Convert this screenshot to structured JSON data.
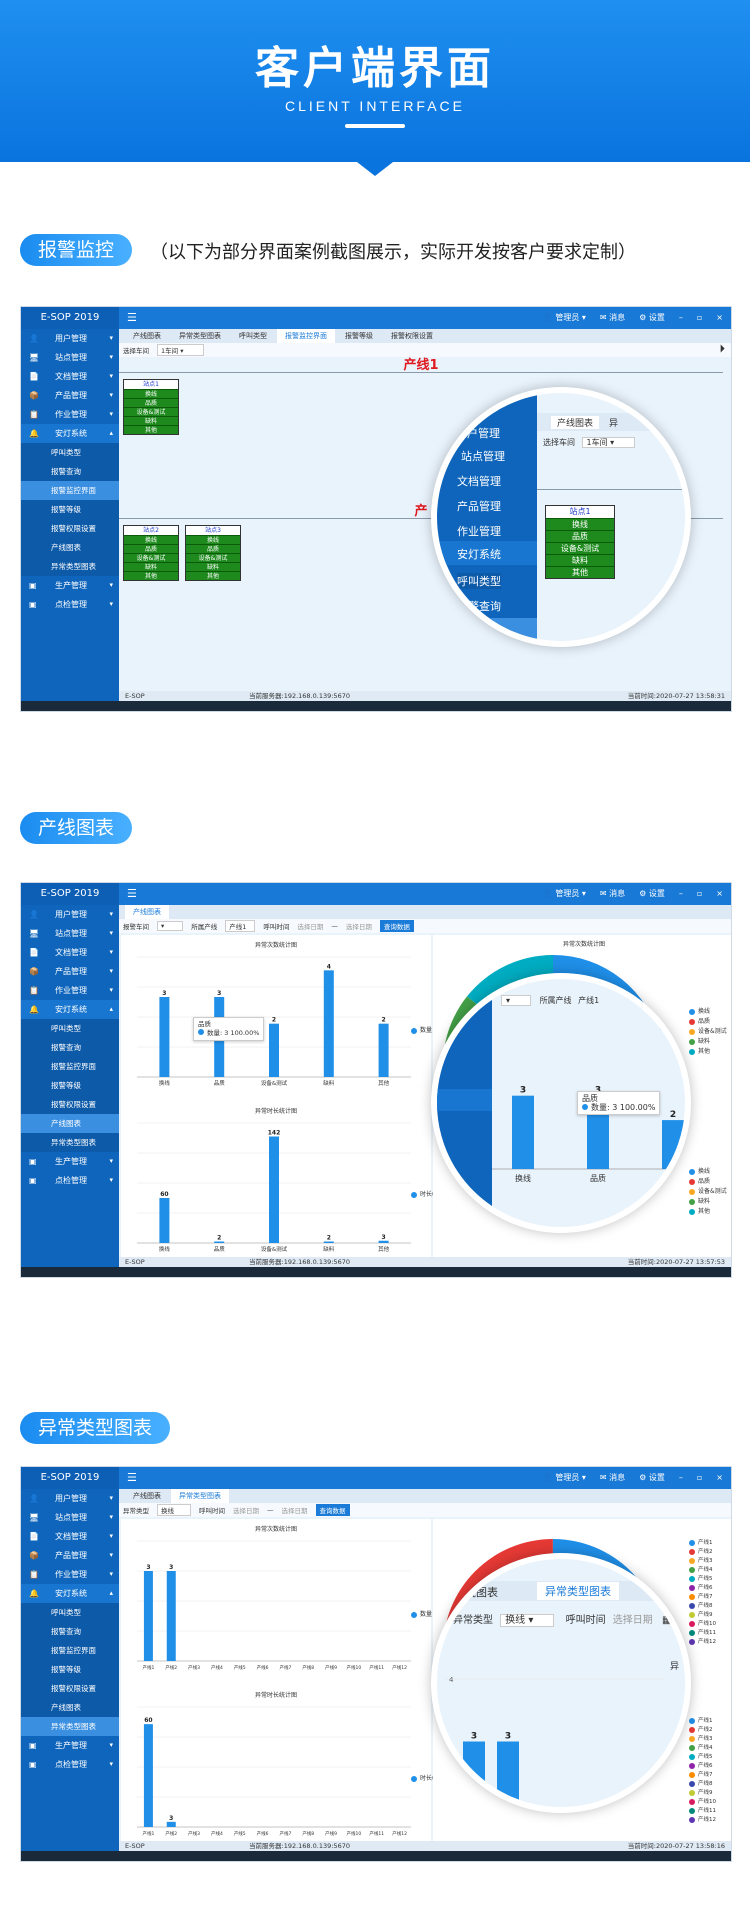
{
  "banner": {
    "title": "客户端界面",
    "subtitle": "CLIENT INTERFACE"
  },
  "sections": {
    "alarm": {
      "label": "报警监控",
      "note": "（以下为部分界面案例截图展示，实际开发按客户要求定制）"
    },
    "line_chart": {
      "label": "产线图表"
    },
    "abnormal_chart": {
      "label": "异常类型图表"
    }
  },
  "app": {
    "title": "E-SOP 2019",
    "user": "管理员",
    "messages": "消息",
    "settings": "设置",
    "footer_left": "E-SOP",
    "server": "当前服务器:192.168.0.139:5670",
    "sidebar": [
      "用户管理",
      "站点管理",
      "文档管理",
      "产品管理",
      "作业管理",
      "安灯系统"
    ],
    "sidebar_sub": [
      "呼叫类型",
      "报警查询",
      "报警监控界面",
      "报警等级",
      "报警权限设置",
      "产线图表",
      "异常类型图表"
    ],
    "sidebar_tail": [
      "生产管理",
      "点检管理"
    ],
    "tabs": [
      "产线图表",
      "异常类型图表",
      "呼叫类型",
      "报警监控界面",
      "报警等级",
      "报警权限设置"
    ]
  },
  "alarm_frame": {
    "time": "当前时间:2020-07-27 13:58:31",
    "filter_label": "选择车间",
    "filter_value": "1车间",
    "line1": "产线1",
    "line2": "产",
    "station1": {
      "name": "站点1",
      "items": [
        "换线",
        "品质",
        "设备&测试",
        "缺料",
        "其他"
      ]
    },
    "station2": {
      "name": "站点2",
      "items": [
        "换线",
        "品质",
        "设备&测试",
        "缺料",
        "其他"
      ]
    },
    "station3": {
      "name": "站点3",
      "items": [
        "换线",
        "品质",
        "设备&测试",
        "缺料",
        "其他"
      ]
    },
    "mag_tab1": "产线图表",
    "mag_tab2": "异",
    "mag_menu": [
      "户管理",
      "站点管理",
      "文档管理",
      "产品管理",
      "作业管理",
      "安灯系统",
      "呼叫类型",
      "报警查询",
      "监控界面"
    ]
  },
  "line_frame": {
    "time": "当前时间:2020-07-27 13:57:53",
    "filters": [
      "报警车间",
      "所属产线",
      "产线1",
      "呼叫时间",
      "选择日期",
      "—",
      "选择日期",
      "查询数据"
    ],
    "chart1_title": "异常次数统计图",
    "chart2_title": "异常时长统计图",
    "pie_title": "异常次数统计图",
    "legend1": "数量",
    "legend2": "时长(分钟)",
    "tooltip_title": "品质",
    "tooltip_text": "数量: 3 100.00%",
    "pie_legend": [
      "换线",
      "品质",
      "设备&测试",
      "缺料",
      "其他"
    ],
    "mag_filters": [
      "所属产线",
      "产线1"
    ],
    "mag_label": "异"
  },
  "abn_frame": {
    "time": "当前时间:2020-07-27 13:58:16",
    "filters": [
      "异常类型",
      "换线",
      "呼叫时间",
      "选择日期",
      "—",
      "选择日期",
      "查询数据"
    ],
    "chart1_title": "异常次数统计图",
    "chart2_title": "异常时长统计图",
    "legend1": "数量",
    "legend2": "时长(分钟)",
    "mag_tab1": "线图表",
    "mag_tab2": "异常类型图表",
    "mag_filter_label": "异常类型",
    "mag_filter_value": "换线",
    "mag_time": "呼叫时间",
    "mag_date": "选择日期",
    "mag_side": "异",
    "pie_legend": [
      "产线1",
      "产线2",
      "产线3",
      "产线4",
      "产线5",
      "产线6",
      "产线7",
      "产线8",
      "产线9",
      "产线10",
      "产线11",
      "产线12"
    ]
  },
  "chart_data": [
    {
      "type": "bar",
      "title": "异常次数统计图",
      "categories": [
        "换线",
        "品质",
        "设备&测试",
        "缺料",
        "其他"
      ],
      "series": [
        {
          "name": "数量",
          "values": [
            3,
            3,
            2,
            4,
            2
          ]
        }
      ],
      "ylim": [
        0,
        4.5
      ]
    },
    {
      "type": "bar",
      "title": "异常时长统计图",
      "categories": [
        "换线",
        "品质",
        "设备&测试",
        "缺料",
        "其他"
      ],
      "series": [
        {
          "name": "时长(分钟)",
          "values": [
            60,
            2,
            142,
            2,
            3
          ]
        }
      ],
      "ylim": [
        0,
        160
      ]
    },
    {
      "type": "bar",
      "title": "异常次数统计图",
      "categories": [
        "产线1",
        "产线2",
        "产线3",
        "产线4",
        "产线5",
        "产线6",
        "产线7",
        "产线8",
        "产线9",
        "产线10",
        "产线11",
        "产线12"
      ],
      "series": [
        {
          "name": "数量",
          "values": [
            3,
            3,
            0,
            0,
            0,
            0,
            0,
            0,
            0,
            0,
            0,
            0
          ]
        }
      ],
      "ylim": [
        0,
        4
      ]
    },
    {
      "type": "bar",
      "title": "异常时长统计图",
      "categories": [
        "产线1",
        "产线2",
        "产线3",
        "产线4",
        "产线5",
        "产线6",
        "产线7",
        "产线8",
        "产线9",
        "产线10",
        "产线11",
        "产线12"
      ],
      "series": [
        {
          "name": "时长(分钟)",
          "values": [
            60,
            3,
            0,
            0,
            0,
            0,
            0,
            0,
            0,
            0,
            0,
            0
          ]
        }
      ],
      "ylim": [
        0,
        70
      ]
    }
  ],
  "colors": {
    "primary": "#1a7bd8",
    "sidebar": "#0e65bb",
    "station_ok": "#1e8a1e",
    "line_title": "#e0191f",
    "bar": "#1f8fe8"
  },
  "pie_colors": [
    "#1f8fe8",
    "#e53935",
    "#f9a825",
    "#43a047",
    "#00acc1"
  ],
  "pie_colors12": [
    "#1f8fe8",
    "#e53935",
    "#f9a825",
    "#43a047",
    "#00acc1",
    "#8e24aa",
    "#fb8c00",
    "#3949ab",
    "#c0ca33",
    "#d81b60",
    "#00897b",
    "#5e35b1"
  ]
}
